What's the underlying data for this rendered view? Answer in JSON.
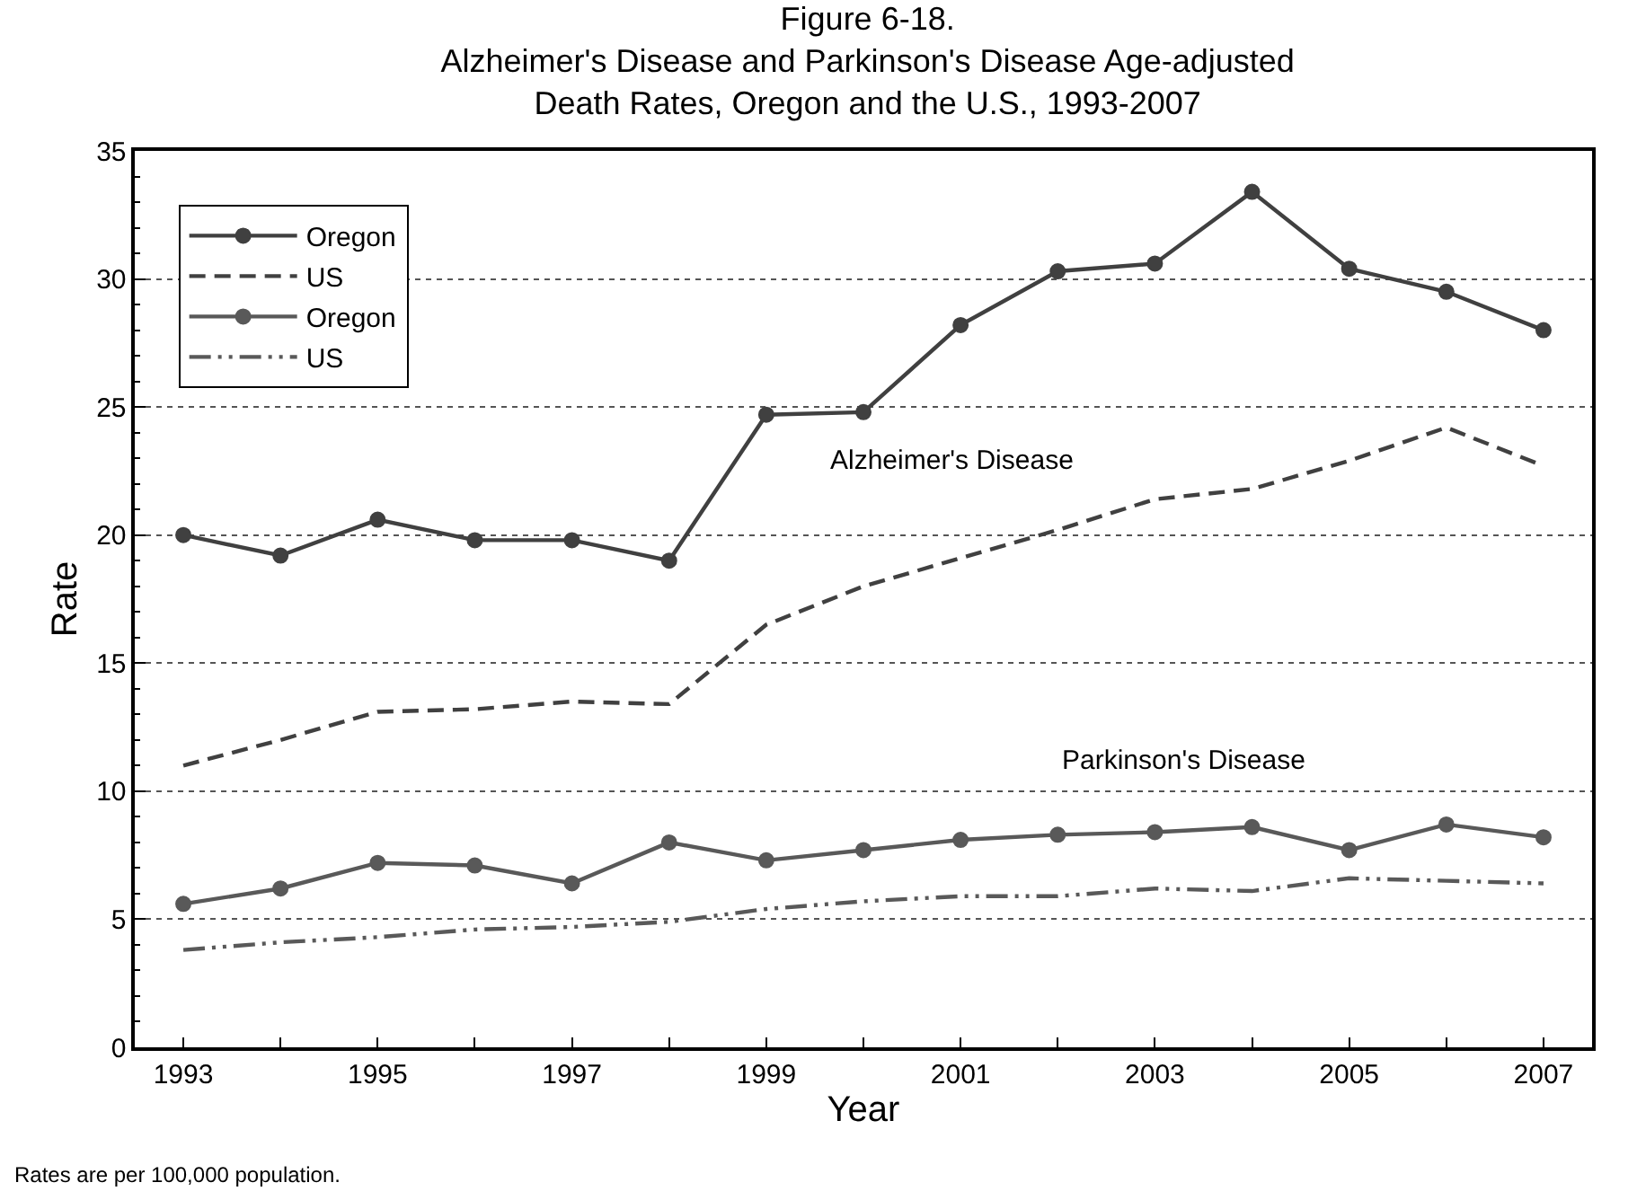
{
  "chart_data": {
    "type": "line",
    "title": "Figure 6-18.\nAlzheimer's Disease and Parkinson's Disease Age-adjusted\nDeath Rates, Oregon and the U.S., 1993-2007",
    "xlabel": "Year",
    "ylabel": "Rate",
    "x": [
      1993,
      1994,
      1995,
      1996,
      1997,
      1998,
      1999,
      2000,
      2001,
      2002,
      2003,
      2004,
      2005,
      2006,
      2007
    ],
    "series": [
      {
        "name": "Oregon",
        "color": "#404040",
        "marker": "circle",
        "line_style": "solid",
        "values": [
          20.0,
          19.2,
          20.6,
          19.8,
          19.8,
          19.0,
          24.7,
          24.8,
          28.2,
          30.3,
          30.6,
          33.4,
          30.4,
          29.5,
          28.0
        ]
      },
      {
        "name": "US",
        "color": "#404040",
        "marker": "none",
        "line_style": "dashed",
        "values": [
          11.0,
          12.0,
          13.1,
          13.2,
          13.5,
          13.4,
          16.5,
          18.0,
          19.1,
          20.2,
          21.4,
          21.8,
          22.9,
          24.2,
          22.7
        ]
      },
      {
        "name": "Oregon",
        "color": "#595959",
        "marker": "circle",
        "line_style": "solid",
        "values": [
          5.6,
          6.2,
          7.2,
          7.1,
          6.4,
          8.0,
          7.3,
          7.7,
          8.1,
          8.3,
          8.4,
          8.6,
          7.7,
          8.7,
          8.2
        ]
      },
      {
        "name": "US",
        "color": "#595959",
        "marker": "none",
        "line_style": "dashdotdot",
        "values": [
          3.8,
          4.1,
          4.3,
          4.6,
          4.7,
          4.9,
          5.4,
          5.7,
          5.9,
          5.9,
          6.2,
          6.1,
          6.6,
          6.5,
          6.4
        ]
      }
    ],
    "xlim": [
      1992.5,
      2007.5
    ],
    "xticks": [
      1993,
      {
        "value": 1994,
        "label": null
      },
      1995,
      {
        "value": 1996,
        "label": null
      },
      1997,
      {
        "value": 1998,
        "label": null
      },
      1999,
      {
        "value": 2000,
        "label": null
      },
      2001,
      {
        "value": 2002,
        "label": null
      },
      2003,
      {
        "value": 2004,
        "label": null
      },
      2005,
      {
        "value": 2006,
        "label": null
      },
      2007
    ],
    "ylim": [
      0,
      35
    ],
    "yticks": [
      0,
      5,
      10,
      15,
      20,
      25,
      30,
      35
    ],
    "grid": "y",
    "legend": "top left",
    "annotations": [
      "Alzheimer's Disease",
      "Parkinson's Disease",
      "Rates are per 100,000 population."
    ]
  }
}
